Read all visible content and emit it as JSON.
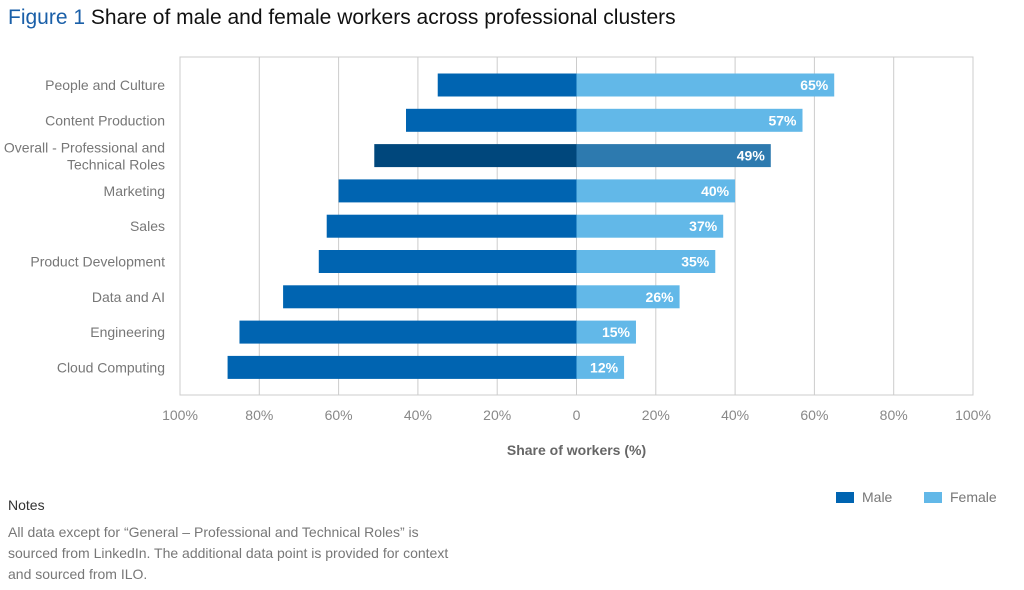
{
  "header": {
    "figure_label": "Figure 1",
    "title": "Share of male and female workers across professional clusters"
  },
  "chart_data": {
    "type": "bar",
    "orientation": "horizontal-diverging",
    "title": "Share of male and female workers across professional clusters",
    "xlabel": "Share of workers (%)",
    "ylabel": "",
    "xlim": [
      -100,
      100
    ],
    "x_ticks": [
      "100%",
      "80%",
      "60%",
      "40%",
      "20%",
      "0",
      "20%",
      "40%",
      "60%",
      "80%",
      "100%"
    ],
    "grid": true,
    "legend_position": "bottom-right",
    "categories": [
      "People and Culture",
      "Content Production",
      "Overall - Professional and Technical Roles",
      "Marketing",
      "Sales",
      "Product Development",
      "Data and AI",
      "Engineering",
      "Cloud Computing"
    ],
    "highlighted_category": "Overall - Professional and Technical Roles",
    "series": [
      {
        "name": "Male",
        "values": [
          35,
          43,
          51,
          60,
          63,
          65,
          74,
          85,
          88
        ],
        "color": "#0064b1",
        "highlight_color": "#00477c"
      },
      {
        "name": "Female",
        "values": [
          65,
          57,
          49,
          40,
          37,
          35,
          26,
          15,
          12
        ],
        "color": "#62b8e8",
        "highlight_color": "#2d7aaf"
      }
    ],
    "data_labels": [
      "65%",
      "57%",
      "49%",
      "40%",
      "37%",
      "35%",
      "26%",
      "15%",
      "12%"
    ]
  },
  "legend": {
    "male": "Male",
    "female": "Female"
  },
  "notes": {
    "heading": "Notes",
    "body": "All data except for “General – Professional and Technical Roles” is sourced from LinkedIn. The additional data point is provided for context and sourced from ILO."
  }
}
